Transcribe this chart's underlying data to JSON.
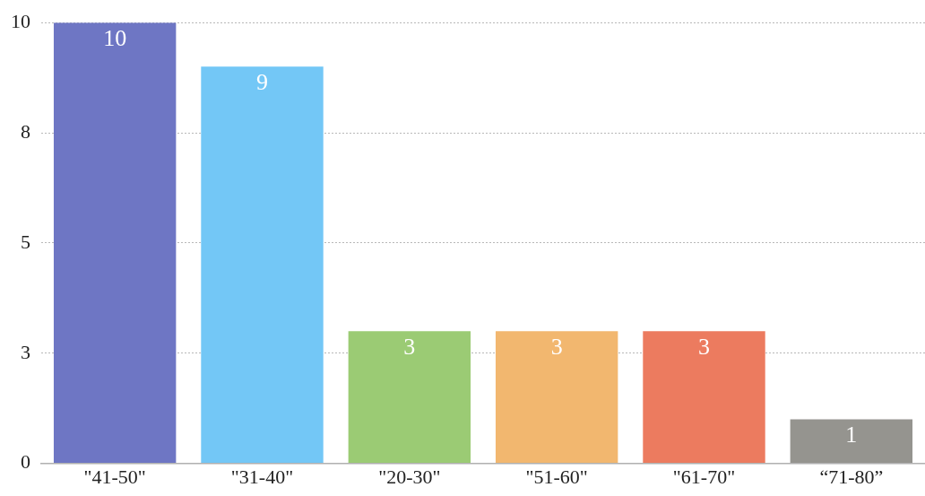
{
  "chart_data": {
    "type": "bar",
    "categories": [
      "\"41-50\"",
      "\"31-40\"",
      "\"20-30\"",
      "\"51-60\"",
      "\"61-70\"",
      "“71-80”"
    ],
    "values": [
      10,
      9,
      3,
      3,
      3,
      1
    ],
    "colors": [
      "#6e76c4",
      "#73c7f6",
      "#9bcb74",
      "#f2b76f",
      "#ec7b5f",
      "#95948f"
    ],
    "ylim": [
      0,
      10
    ],
    "yticks": [
      0,
      {
        "value": 2.5,
        "label": "3"
      },
      5,
      {
        "value": 7.5,
        "label": "8"
      },
      10
    ],
    "grid": "y",
    "legend": false,
    "data_labels": true
  }
}
